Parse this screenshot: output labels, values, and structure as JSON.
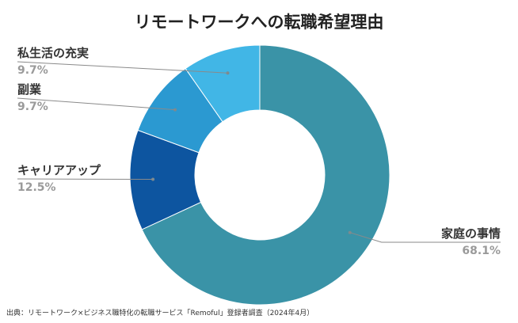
{
  "chart_data": {
    "type": "pie",
    "style": "donut",
    "title": "リモートワークへの転職希望理由",
    "categories": [
      "家庭の事情",
      "キャリアアップ",
      "副業",
      "私生活の充実"
    ],
    "series": [
      {
        "values": [
          68.1,
          12.5,
          9.7,
          9.7
        ]
      }
    ],
    "value_labels": [
      "68.1%",
      "12.5%",
      "9.7%",
      "9.7%"
    ],
    "colors": [
      "#3a93a7",
      "#0d55a0",
      "#2b99d1",
      "#41b6e6"
    ],
    "legend": "none"
  },
  "footer": {
    "source": "出典：リモートワーク×ビジネス職特化の転職サービス「Remoful」登録者調査（2024年4月）"
  }
}
